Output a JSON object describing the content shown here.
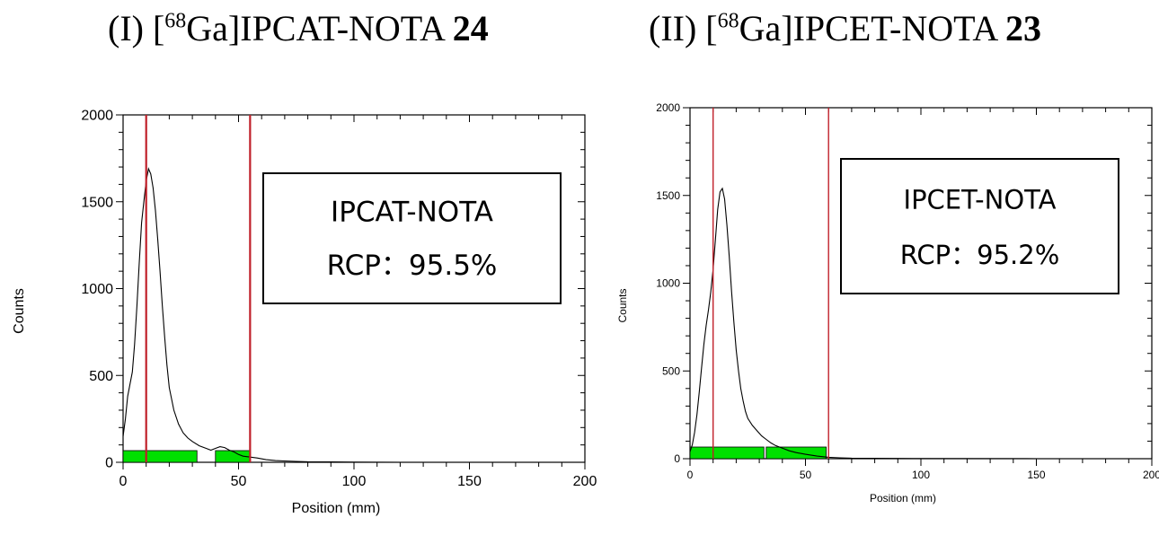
{
  "panels": [
    {
      "title_prefix": "(I) [",
      "title_sup": "68",
      "title_mid": "Ga]IPCAT-NOTA ",
      "title_bold": "24",
      "box_line1": "IPCAT-NOTA",
      "box_line2": "RCP：95.5%"
    },
    {
      "title_prefix": "(II) [",
      "title_sup": "68",
      "title_mid": "Ga]IPCET-NOTA ",
      "title_bold": "23",
      "box_line1": "IPCET-NOTA",
      "box_line2": "RCP：95.2%"
    }
  ],
  "colors": {
    "trace": "#000000",
    "marker_line": "#c0202a",
    "region_bar": "#00e000",
    "frame": "#000000"
  },
  "chart_data": [
    {
      "type": "line",
      "xlabel": "Position (mm)",
      "ylabel": "Counts",
      "xlim": [
        0,
        200
      ],
      "ylim": [
        0,
        2000
      ],
      "xticks": [
        0,
        50,
        100,
        150,
        200
      ],
      "yticks": [
        0,
        500,
        1000,
        1500,
        2000
      ],
      "markers_x": [
        10,
        55
      ],
      "region_bars": [
        [
          0,
          32
        ],
        [
          40,
          55
        ]
      ],
      "grid": false,
      "series": [
        {
          "x": [
            0,
            1,
            2,
            3,
            4,
            5,
            6,
            7,
            8,
            9,
            10,
            11,
            12,
            13,
            14,
            15,
            16,
            17,
            18,
            19,
            20,
            22,
            24,
            26,
            28,
            30,
            33,
            36,
            38,
            40,
            42,
            44,
            46,
            48,
            50,
            52,
            55,
            58,
            62,
            66,
            70,
            75,
            80,
            90,
            100,
            120,
            150,
            200
          ],
          "y": [
            150,
            250,
            380,
            450,
            520,
            680,
            900,
            1150,
            1380,
            1500,
            1620,
            1690,
            1660,
            1580,
            1450,
            1280,
            1100,
            900,
            720,
            560,
            430,
            300,
            220,
            170,
            140,
            120,
            95,
            80,
            70,
            80,
            90,
            85,
            70,
            60,
            45,
            35,
            30,
            25,
            15,
            10,
            8,
            5,
            3,
            2,
            1,
            0,
            0,
            0
          ]
        }
      ]
    },
    {
      "type": "line",
      "xlabel": "Position (mm)",
      "ylabel": "Counts",
      "xlim": [
        0,
        200
      ],
      "ylim": [
        0,
        2000
      ],
      "xticks": [
        0,
        50,
        100,
        150,
        200
      ],
      "yticks": [
        0,
        500,
        1000,
        1500,
        2000
      ],
      "markers_x": [
        10,
        60
      ],
      "region_bars": [
        [
          0,
          32
        ],
        [
          33,
          59
        ]
      ],
      "grid": false,
      "series": [
        {
          "x": [
            0,
            1,
            2,
            3,
            4,
            5,
            6,
            7,
            8,
            9,
            10,
            11,
            12,
            13,
            14,
            15,
            16,
            17,
            18,
            19,
            20,
            21,
            22,
            23,
            24,
            25,
            27,
            29,
            31,
            33,
            35,
            37,
            40,
            43,
            46,
            50,
            55,
            60,
            65,
            70,
            80,
            100,
            150,
            200
          ],
          "y": [
            40,
            80,
            150,
            250,
            380,
            520,
            650,
            760,
            850,
            950,
            1080,
            1250,
            1420,
            1520,
            1540,
            1480,
            1330,
            1150,
            950,
            780,
            620,
            500,
            400,
            330,
            270,
            230,
            190,
            160,
            130,
            110,
            90,
            75,
            60,
            45,
            35,
            25,
            15,
            8,
            5,
            3,
            2,
            1,
            0,
            0
          ]
        }
      ]
    }
  ]
}
